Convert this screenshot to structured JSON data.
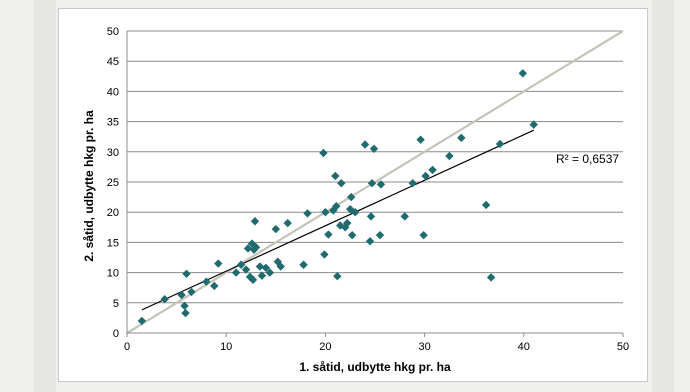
{
  "chart_data": {
    "type": "scatter",
    "title": "",
    "xlabel": "1. såtid, udbytte hkg pr. ha",
    "ylabel": "2. såtid, udbytte hkg pr. ha",
    "xlim": [
      0,
      50
    ],
    "ylim": [
      0,
      50
    ],
    "x_ticks": [
      "0",
      "10",
      "20",
      "30",
      "40",
      "50"
    ],
    "y_ticks": [
      "0",
      "5",
      "10",
      "15",
      "20",
      "25",
      "30",
      "35",
      "40",
      "45",
      "50"
    ],
    "grid": "horizontal",
    "r2_label": "R² = 0,6537",
    "marker_color": "#1f6b6e",
    "trendline_color": "#000000",
    "reference_line_color": "#c4c4b8",
    "trendline": {
      "slope": 0.753,
      "intercept": 2.7
    },
    "reference_line": {
      "from": [
        0,
        0
      ],
      "to": [
        50,
        50
      ]
    },
    "points": [
      [
        1.5,
        2
      ],
      [
        3.8,
        5.6
      ],
      [
        5.5,
        6.3
      ],
      [
        5.8,
        4.5
      ],
      [
        5.9,
        3.3
      ],
      [
        6,
        9.8
      ],
      [
        6.5,
        6.8
      ],
      [
        8,
        8.5
      ],
      [
        8.8,
        7.8
      ],
      [
        9.2,
        11.5
      ],
      [
        11,
        10
      ],
      [
        11.5,
        11.3
      ],
      [
        12,
        10.5
      ],
      [
        12.2,
        14
      ],
      [
        12.4,
        9.3
      ],
      [
        12.6,
        14.8
      ],
      [
        12.7,
        8.8
      ],
      [
        12.8,
        13.8
      ],
      [
        12.9,
        18.5
      ],
      [
        13,
        14.2
      ],
      [
        13.4,
        11
      ],
      [
        13.6,
        9.5
      ],
      [
        14,
        10.8
      ],
      [
        14.4,
        10
      ],
      [
        15,
        17.2
      ],
      [
        15.2,
        11.8
      ],
      [
        15.5,
        11
      ],
      [
        16.2,
        18.2
      ],
      [
        17.8,
        11.3
      ],
      [
        18.2,
        19.8
      ],
      [
        19.8,
        29.8
      ],
      [
        19.9,
        13
      ],
      [
        20,
        20
      ],
      [
        20.3,
        16.3
      ],
      [
        20.8,
        20.3
      ],
      [
        21,
        26
      ],
      [
        21.1,
        21
      ],
      [
        21.2,
        9.4
      ],
      [
        21.5,
        17.8
      ],
      [
        21.6,
        24.8
      ],
      [
        22,
        17.5
      ],
      [
        22.2,
        18.2
      ],
      [
        22.5,
        20.5
      ],
      [
        22.6,
        22.5
      ],
      [
        22.7,
        16.2
      ],
      [
        23,
        20
      ],
      [
        24,
        31.2
      ],
      [
        24.5,
        15.2
      ],
      [
        24.6,
        19.3
      ],
      [
        24.7,
        24.8
      ],
      [
        24.9,
        30.5
      ],
      [
        25.5,
        16.2
      ],
      [
        25.6,
        24.6
      ],
      [
        28,
        19.3
      ],
      [
        28.8,
        24.8
      ],
      [
        29.6,
        32
      ],
      [
        29.9,
        16.2
      ],
      [
        30.1,
        26
      ],
      [
        30.8,
        27
      ],
      [
        32.5,
        29.3
      ],
      [
        33.7,
        32.3
      ],
      [
        36.2,
        21.2
      ],
      [
        36.7,
        9.2
      ],
      [
        37.6,
        31.3
      ],
      [
        39.9,
        43
      ],
      [
        41,
        34.5
      ]
    ]
  }
}
